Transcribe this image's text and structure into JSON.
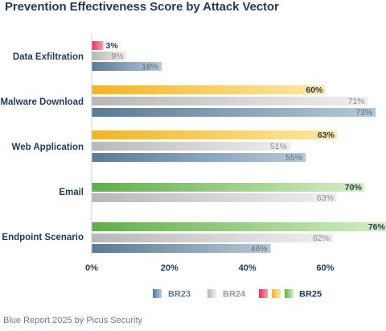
{
  "title": "Prevention Effectiveness Score by Attack Vector",
  "footer": "Blue Report 2025 by Picus Security",
  "chart_data": {
    "type": "bar",
    "orientation": "horizontal",
    "title": "Prevention Effectiveness Score by Attack Vector",
    "categories": [
      "Data Exfiltration",
      "Malware Download",
      "Web Application",
      "Email",
      "Endpoint Scenario"
    ],
    "series": [
      {
        "name": "BR25",
        "values": [
          3,
          60,
          63,
          70,
          76
        ],
        "labels": [
          "3%",
          "60%",
          "63%",
          "70%",
          "76%"
        ]
      },
      {
        "name": "BR24",
        "values": [
          9,
          71,
          51,
          63,
          62
        ],
        "labels": [
          "9%",
          "71%",
          "51%",
          "63%",
          "62%"
        ]
      },
      {
        "name": "BR23",
        "values": [
          18,
          73,
          55,
          null,
          46
        ],
        "labels": [
          "18%",
          "73%",
          "55%",
          null,
          "46%"
        ]
      }
    ],
    "xlim": [
      0,
      76
    ],
    "x_ticks": [
      0,
      20,
      40,
      60
    ],
    "x_tick_labels": [
      "0%",
      "20%",
      "40%",
      "60%"
    ],
    "grid": false,
    "legend_position": "bottom",
    "legend": {
      "br23": "BR23",
      "br24": "BR24",
      "br25": "BR25"
    },
    "colors": {
      "br23": [
        "#5a7a95",
        "#b7c9d8"
      ],
      "br24": [
        "#b8b8b8",
        "#efefef"
      ],
      "br25_by_category": [
        [
          "#e8325a",
          "#f3a0b3"
        ],
        [
          "#f0b429",
          "#fde8a8"
        ],
        [
          "#f0b429",
          "#fde8a8"
        ],
        [
          "#5fae4a",
          "#d5eec4"
        ],
        [
          "#5fae4a",
          "#d5eec4"
        ]
      ],
      "br25_legend": [
        [
          "#e8325a",
          "#f3a0b3"
        ],
        [
          "#f0b429",
          "#fde8a8"
        ],
        [
          "#5fae4a",
          "#d5eec4"
        ]
      ],
      "label_dark": "#1f3a57",
      "label_gray": "#8a8a8a"
    }
  }
}
